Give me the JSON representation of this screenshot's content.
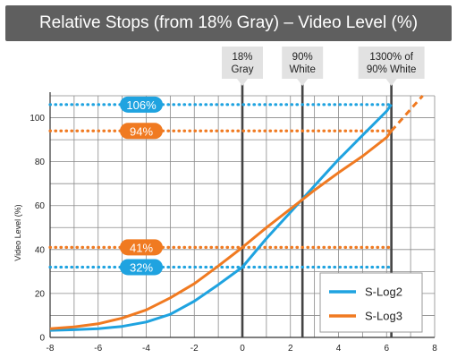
{
  "title": "Relative Stops (from 18% Gray) – Video Level (%)",
  "chart_data": {
    "type": "line",
    "title": "Relative Stops (from 18% Gray) – Video Level (%)",
    "xlabel": "",
    "ylabel": "Video Level (%)",
    "xlim": [
      -8,
      8
    ],
    "ylim": [
      0,
      110
    ],
    "xticks": [
      -8,
      -6,
      -4,
      -2,
      0,
      2,
      4,
      6,
      8
    ],
    "yticks": [
      0,
      20,
      40,
      60,
      80,
      100
    ],
    "grid": true,
    "legend_position": "bottom-right",
    "series": [
      {
        "name": "S-Log2",
        "color": "#1fa3e0",
        "x": [
          -8,
          -7,
          -6,
          -5,
          -4,
          -3,
          -2,
          -1,
          0,
          1,
          2,
          3,
          4,
          5,
          6,
          6.2
        ],
        "y": [
          3.2,
          3.5,
          4.0,
          5.0,
          7.0,
          10.5,
          16.5,
          24.0,
          32.0,
          45.0,
          57.0,
          69.0,
          81.0,
          92.0,
          103.0,
          106.0
        ]
      },
      {
        "name": "S-Log3",
        "color": "#f07a21",
        "x": [
          -8,
          -7,
          -6,
          -5,
          -4,
          -3,
          -2,
          -1,
          0,
          1,
          2,
          3,
          4,
          5,
          6,
          6.2
        ],
        "y": [
          4.0,
          4.8,
          6.2,
          8.8,
          12.5,
          18.0,
          24.5,
          32.5,
          41.0,
          50.0,
          58.5,
          67.0,
          75.0,
          82.5,
          91.0,
          94.0
        ],
        "dashed_extension": {
          "x": [
            6.2,
            7.5
          ],
          "y": [
            94.0,
            110.0
          ]
        }
      }
    ],
    "hlines": [
      {
        "y": 106,
        "label": "106%",
        "color": "#1fa3e0"
      },
      {
        "y": 94,
        "label": "94%",
        "color": "#f07a21"
      },
      {
        "y": 41,
        "label": "41%",
        "color": "#f07a21"
      },
      {
        "y": 32,
        "label": "32%",
        "color": "#1fa3e0"
      }
    ],
    "vlines": [
      {
        "x": 0,
        "label": [
          "18%",
          "Gray"
        ]
      },
      {
        "x": 2.5,
        "label": [
          "90%",
          "White"
        ]
      },
      {
        "x": 6.2,
        "label": [
          "1300% of",
          "90% White"
        ]
      }
    ]
  }
}
